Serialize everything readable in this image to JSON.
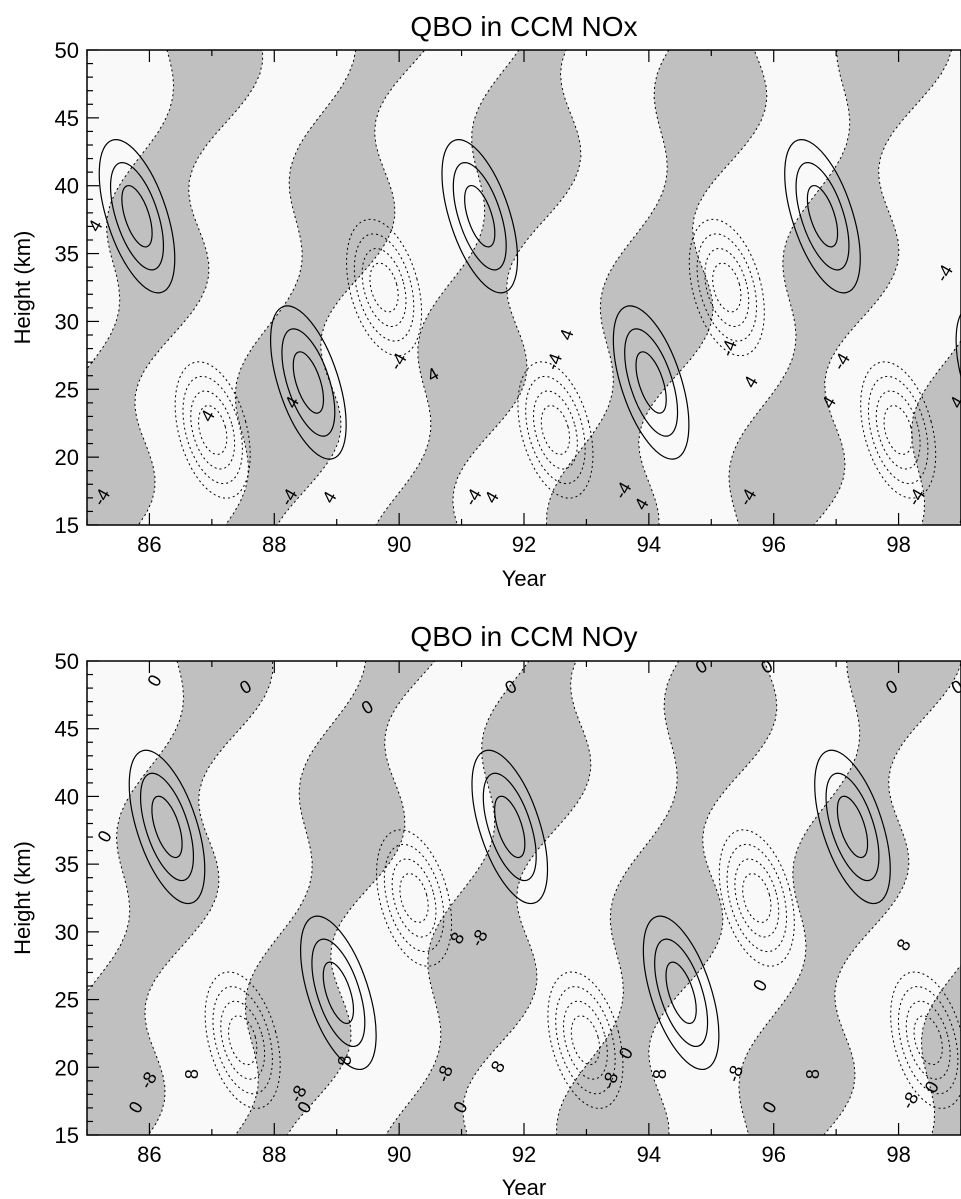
{
  "chart_data": [
    {
      "type": "contour",
      "title": "QBO in CCM NOx",
      "xlabel": "Year",
      "ylabel": "Height (km)",
      "xlim": [
        85,
        99
      ],
      "ylim": [
        15,
        50
      ],
      "x_ticks": [
        86,
        88,
        90,
        92,
        94,
        96,
        98
      ],
      "y_ticks": [
        15,
        20,
        25,
        30,
        35,
        40,
        45,
        50
      ],
      "shaded": "positive anomaly",
      "contour_labels": [
        {
          "text": "4",
          "x": 85.15,
          "y": 37.0,
          "rot": -60
        },
        {
          "text": "-4",
          "x": 85.25,
          "y": 17.0,
          "rot": -60
        },
        {
          "text": "4",
          "x": 86.95,
          "y": 23.0,
          "rot": -60
        },
        {
          "text": "-4",
          "x": 88.25,
          "y": 17.0,
          "rot": -60
        },
        {
          "text": "4",
          "x": 88.3,
          "y": 24.0,
          "rot": -60
        },
        {
          "text": "4",
          "x": 88.9,
          "y": 17.0,
          "rot": -60
        },
        {
          "text": "-4",
          "x": 90.0,
          "y": 27.0,
          "rot": -60
        },
        {
          "text": "4",
          "x": 90.55,
          "y": 26.0,
          "rot": -30
        },
        {
          "text": "-4",
          "x": 91.2,
          "y": 17.0,
          "rot": -60
        },
        {
          "text": "4",
          "x": 91.5,
          "y": 17.0,
          "rot": -60
        },
        {
          "text": "-4",
          "x": 92.5,
          "y": 27.0,
          "rot": -70
        },
        {
          "text": "4",
          "x": 92.7,
          "y": 29.0,
          "rot": -70
        },
        {
          "text": "-4",
          "x": 93.6,
          "y": 17.5,
          "rot": -60
        },
        {
          "text": "4",
          "x": 93.9,
          "y": 16.5,
          "rot": -60
        },
        {
          "text": "-4",
          "x": 95.3,
          "y": 28.0,
          "rot": -70
        },
        {
          "text": "4",
          "x": 95.65,
          "y": 25.5,
          "rot": -60
        },
        {
          "text": "-4",
          "x": 95.6,
          "y": 17.0,
          "rot": -60
        },
        {
          "text": "-4",
          "x": 97.1,
          "y": 27.0,
          "rot": -60
        },
        {
          "text": "4",
          "x": 96.9,
          "y": 24.0,
          "rot": -60
        },
        {
          "text": "-4",
          "x": 98.3,
          "y": 17.0,
          "rot": -60
        },
        {
          "text": "-4",
          "x": 98.75,
          "y": 33.5,
          "rot": -60
        },
        {
          "text": "4",
          "x": 98.95,
          "y": 24.0,
          "rot": -60
        }
      ]
    },
    {
      "type": "contour",
      "title": "QBO in CCM NOy",
      "xlabel": "Year",
      "ylabel": "Height (km)",
      "xlim": [
        85,
        99
      ],
      "ylim": [
        15,
        50
      ],
      "x_ticks": [
        86,
        88,
        90,
        92,
        94,
        96,
        98
      ],
      "y_ticks": [
        15,
        20,
        25,
        30,
        35,
        40,
        45,
        50
      ],
      "shaded": "positive anomaly",
      "contour_labels": [
        {
          "text": "0",
          "x": 86.1,
          "y": 48.5,
          "rot": -60
        },
        {
          "text": "0",
          "x": 87.55,
          "y": 48.0,
          "rot": -30
        },
        {
          "text": "0",
          "x": 89.5,
          "y": 46.5,
          "rot": -30
        },
        {
          "text": "0",
          "x": 91.8,
          "y": 48.0,
          "rot": -30
        },
        {
          "text": "0",
          "x": 94.85,
          "y": 49.5,
          "rot": -30
        },
        {
          "text": "0",
          "x": 95.9,
          "y": 49.5,
          "rot": -30
        },
        {
          "text": "0",
          "x": 97.9,
          "y": 48.0,
          "rot": -30
        },
        {
          "text": "0",
          "x": 98.95,
          "y": 48.0,
          "rot": -30
        },
        {
          "text": "0",
          "x": 85.3,
          "y": 37.0,
          "rot": -60
        },
        {
          "text": "8",
          "x": 90.95,
          "y": 29.5,
          "rot": -60
        },
        {
          "text": "-8",
          "x": 91.3,
          "y": 29.5,
          "rot": -60
        },
        {
          "text": "0",
          "x": 95.8,
          "y": 26.0,
          "rot": -60
        },
        {
          "text": "8",
          "x": 98.1,
          "y": 29.0,
          "rot": -60
        },
        {
          "text": "-8",
          "x": 86.0,
          "y": 19.0,
          "rot": -60
        },
        {
          "text": "0",
          "x": 85.8,
          "y": 17.0,
          "rot": -60
        },
        {
          "text": "8",
          "x": 86.7,
          "y": 19.5,
          "rot": -90
        },
        {
          "text": "-8",
          "x": 88.4,
          "y": 18.0,
          "rot": -60
        },
        {
          "text": "0",
          "x": 88.5,
          "y": 17.0,
          "rot": -60
        },
        {
          "text": "8",
          "x": 89.15,
          "y": 20.5,
          "rot": -90
        },
        {
          "text": "-8",
          "x": 90.75,
          "y": 19.5,
          "rot": -70
        },
        {
          "text": "0",
          "x": 91.0,
          "y": 17.0,
          "rot": -60
        },
        {
          "text": "8",
          "x": 91.6,
          "y": 20.0,
          "rot": -60
        },
        {
          "text": "-8",
          "x": 93.4,
          "y": 19.0,
          "rot": -70
        },
        {
          "text": "0",
          "x": 93.65,
          "y": 21.0,
          "rot": -60
        },
        {
          "text": "8",
          "x": 94.2,
          "y": 19.5,
          "rot": -90
        },
        {
          "text": "-8",
          "x": 95.4,
          "y": 19.5,
          "rot": -70
        },
        {
          "text": "0",
          "x": 95.95,
          "y": 17.0,
          "rot": -60
        },
        {
          "text": "8",
          "x": 96.65,
          "y": 19.5,
          "rot": -90
        },
        {
          "text": "-8",
          "x": 98.2,
          "y": 17.5,
          "rot": -60
        },
        {
          "text": "0",
          "x": 98.55,
          "y": 18.5,
          "rot": -60
        }
      ]
    }
  ]
}
